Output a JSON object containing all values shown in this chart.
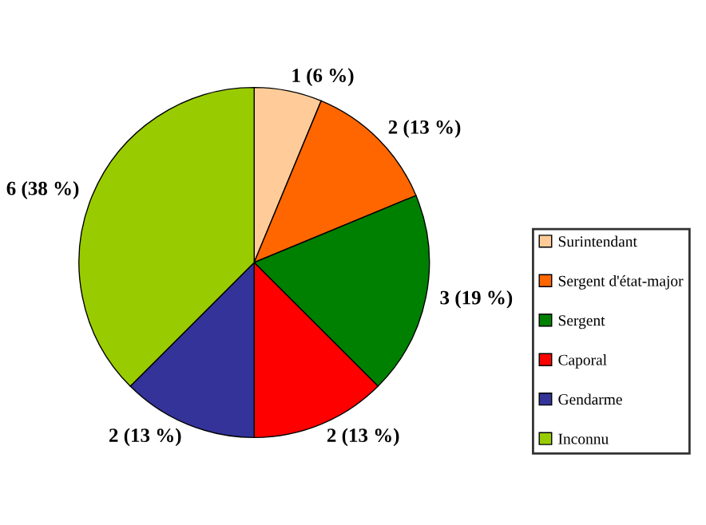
{
  "chart_data": {
    "type": "pie",
    "categories": [
      "Surintendant",
      "Sergent d'état-major",
      "Sergent",
      "Caporal",
      "Gendarme",
      "Inconnu"
    ],
    "values": [
      1,
      2,
      3,
      2,
      2,
      6
    ],
    "colors": [
      "#ffcc99",
      "#ff6600",
      "#008000",
      "#ff0000",
      "#333399",
      "#99cc00"
    ],
    "value_labels": [
      "1 (6 %)",
      "2 (13 %)",
      "3 (19 %)",
      "2 (13 %)",
      "2 (13 %)",
      "6 (38 %)"
    ],
    "legend": "right"
  }
}
